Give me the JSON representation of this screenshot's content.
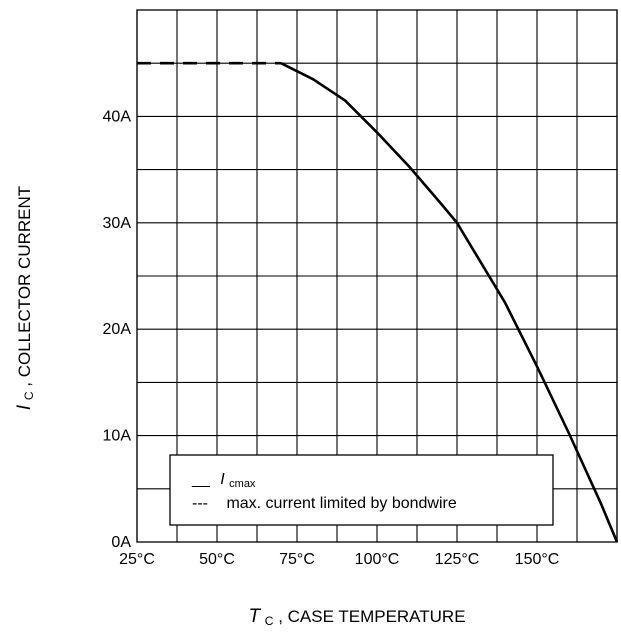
{
  "chart_data": {
    "type": "line",
    "xlabel": {
      "symbol": "T",
      "sub": "C",
      "text": ", CASE TEMPERATURE"
    },
    "ylabel": {
      "symbol": "I",
      "sub": "C",
      "text": ", COLLECTOR CURRENT"
    },
    "x_ticks": [
      {
        "value": 25,
        "label": "25°C"
      },
      {
        "value": 50,
        "label": "50°C"
      },
      {
        "value": 75,
        "label": "75°C"
      },
      {
        "value": 100,
        "label": "100°C"
      },
      {
        "value": 125,
        "label": "125°C"
      },
      {
        "value": 150,
        "label": "150°C"
      }
    ],
    "y_ticks": [
      {
        "value": 0,
        "label": "0A"
      },
      {
        "value": 10,
        "label": "10A"
      },
      {
        "value": 20,
        "label": "20A"
      },
      {
        "value": 30,
        "label": "30A"
      },
      {
        "value": 40,
        "label": "40A"
      }
    ],
    "xlim": [
      25,
      175
    ],
    "ylim": [
      0,
      50
    ],
    "grid": true,
    "legend_position": "bottom-left",
    "series": [
      {
        "name": "Icmax",
        "style": "solid",
        "x": [
          70,
          80,
          90,
          100,
          110,
          120,
          125,
          130,
          140,
          150,
          160,
          170,
          175
        ],
        "y": [
          45,
          43.5,
          41.5,
          38.5,
          35.3,
          31.8,
          30,
          27.5,
          22.5,
          16.5,
          10.2,
          3.6,
          0
        ]
      },
      {
        "name": "max. current limited by bondwire",
        "style": "dashed",
        "x": [
          25,
          70
        ],
        "y": [
          45,
          45
        ]
      }
    ],
    "legend": [
      {
        "style": "solid",
        "marker": "__",
        "symbol": "I",
        "sub": "cmax",
        "text": ""
      },
      {
        "style": "dashed",
        "marker": "---",
        "symbol": "",
        "sub": "",
        "text": "max. current limited by bondwire"
      }
    ]
  }
}
